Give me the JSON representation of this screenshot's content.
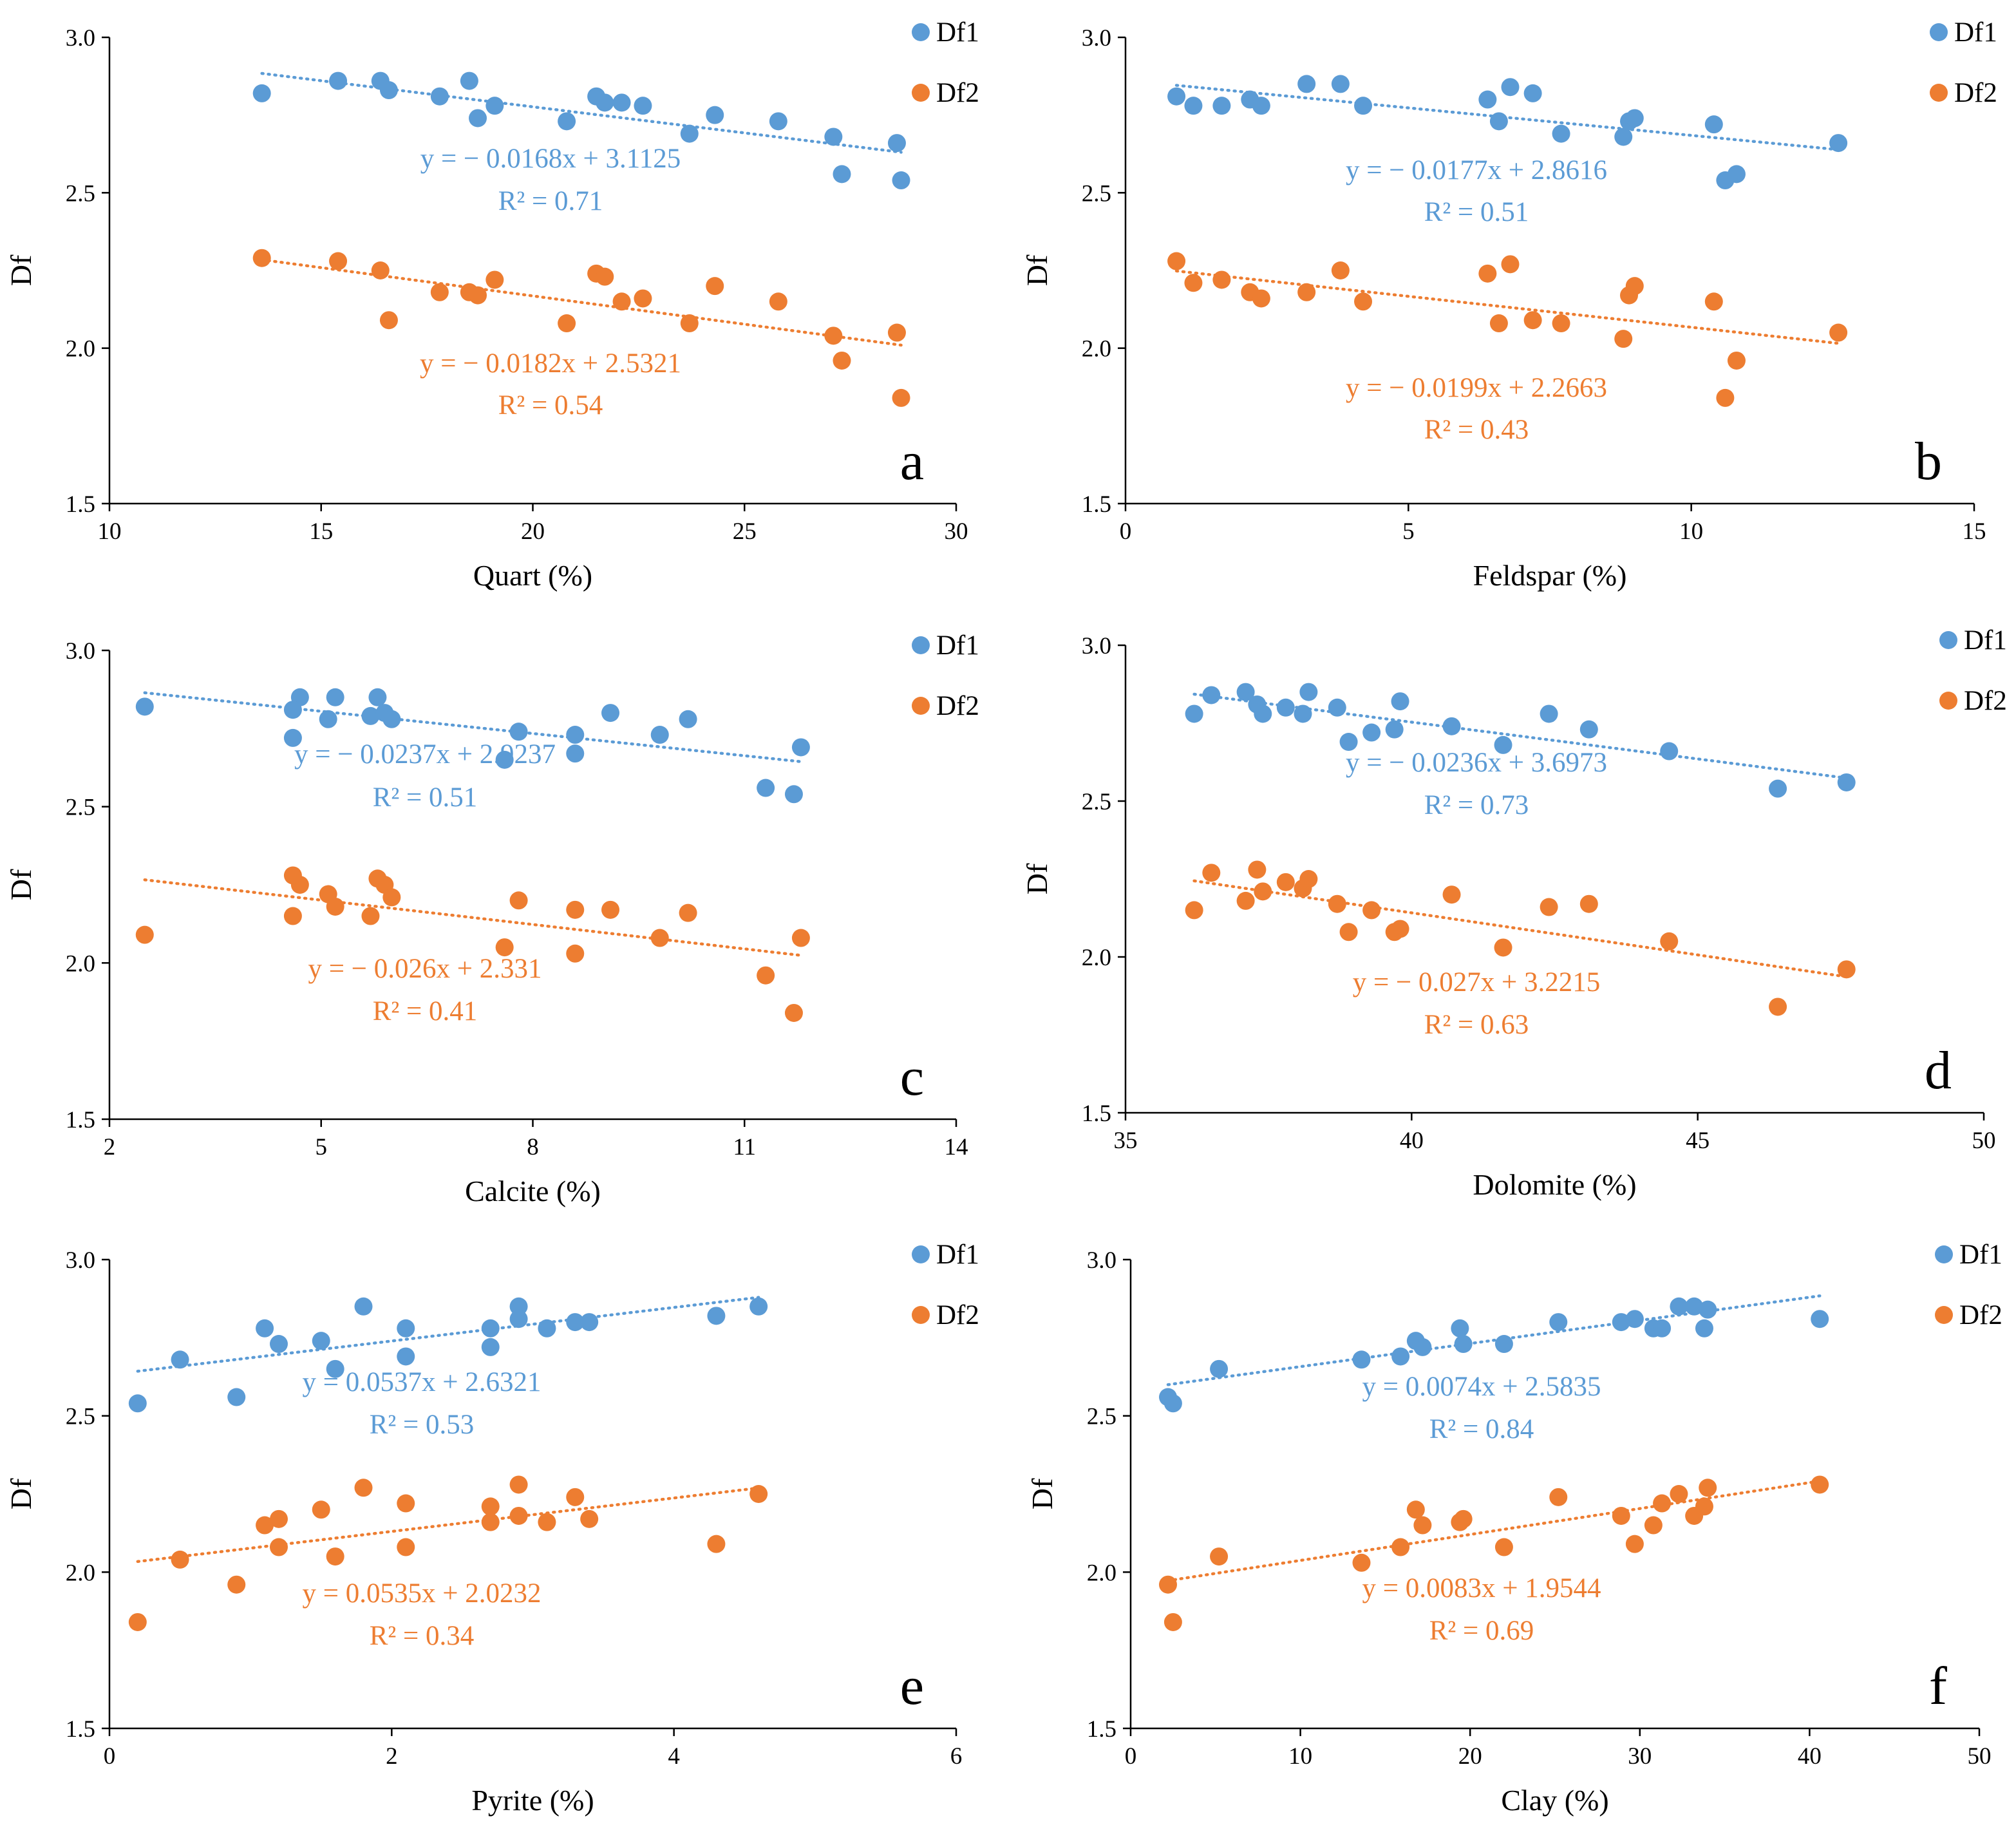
{
  "colors": {
    "df1": "#5b9bd5",
    "df2": "#ed7d31",
    "axis": "#000000",
    "text": "#000000"
  },
  "chart_data": [
    {
      "type": "scatter",
      "panel": "a",
      "xlabel": "Quart (%)",
      "ylabel": "Df",
      "xlim": [
        10,
        30
      ],
      "xticks": [
        "10",
        "15",
        "20",
        "25",
        "30"
      ],
      "ylim": [
        1.5,
        3.0
      ],
      "yticks": [
        "1.5",
        "2.0",
        "2.5",
        "3.0"
      ],
      "legend": [
        "Df1",
        "Df2"
      ],
      "series": [
        {
          "name": "Df1",
          "color": "#5b9bd5",
          "x": [
            13.6,
            15.4,
            16.4,
            16.6,
            17.8,
            18.5,
            18.7,
            19.1,
            20.8,
            21.5,
            21.7,
            22.1,
            22.6,
            23.7,
            24.3,
            25.8,
            27.1,
            27.3,
            28.6,
            28.7
          ],
          "y": [
            2.82,
            2.86,
            2.86,
            2.83,
            2.81,
            2.86,
            2.74,
            2.78,
            2.73,
            2.81,
            2.79,
            2.79,
            2.78,
            2.69,
            2.75,
            2.73,
            2.68,
            2.56,
            2.66,
            2.54
          ],
          "equation": "y = − 0.0168x + 3.1125",
          "r2": "R² = 0.71",
          "slope": -0.0168,
          "intercept": 3.1125,
          "trend_x": [
            13.6,
            28.7
          ]
        },
        {
          "name": "Df2",
          "color": "#ed7d31",
          "x": [
            13.6,
            15.4,
            16.4,
            16.6,
            17.8,
            18.5,
            18.7,
            19.1,
            20.8,
            21.5,
            21.7,
            22.1,
            22.6,
            23.7,
            24.3,
            25.8,
            27.1,
            27.3,
            28.6,
            28.7
          ],
          "y": [
            2.29,
            2.28,
            2.25,
            2.09,
            2.18,
            2.18,
            2.17,
            2.22,
            2.08,
            2.24,
            2.23,
            2.15,
            2.16,
            2.08,
            2.2,
            2.15,
            2.04,
            1.96,
            2.05,
            1.84
          ],
          "equation": "y = − 0.0182x + 2.5321",
          "r2": "R² = 0.54",
          "slope": -0.0182,
          "intercept": 2.5321,
          "trend_x": [
            13.6,
            28.7
          ]
        }
      ]
    },
    {
      "type": "scatter",
      "panel": "b",
      "xlabel": "Feldspar (%)",
      "ylabel": "Df",
      "xlim": [
        0,
        15
      ],
      "xticks": [
        "0",
        "5",
        "10",
        "15"
      ],
      "ylim": [
        1.5,
        3.0
      ],
      "yticks": [
        "1.5",
        "2.0",
        "2.5",
        "3.0"
      ],
      "legend": [
        "Df1",
        "Df2"
      ],
      "series": [
        {
          "name": "Df1",
          "color": "#5b9bd5",
          "x": [
            0.9,
            1.2,
            1.7,
            2.2,
            2.4,
            3.2,
            3.8,
            4.2,
            6.4,
            6.6,
            6.8,
            7.2,
            7.7,
            8.8,
            8.9,
            9.0,
            10.4,
            10.6,
            10.8,
            12.6
          ],
          "y": [
            2.81,
            2.78,
            2.78,
            2.8,
            2.78,
            2.85,
            2.85,
            2.78,
            2.8,
            2.73,
            2.84,
            2.82,
            2.69,
            2.68,
            2.73,
            2.74,
            2.72,
            2.54,
            2.56,
            2.66
          ],
          "equation": "y = − 0.0177x + 2.8616",
          "r2": "R² = 0.51",
          "slope": -0.0177,
          "intercept": 2.8616,
          "trend_x": [
            0.9,
            12.6
          ]
        },
        {
          "name": "Df2",
          "color": "#ed7d31",
          "x": [
            0.9,
            1.2,
            1.7,
            2.2,
            2.4,
            3.2,
            3.8,
            4.2,
            6.4,
            6.6,
            6.8,
            7.2,
            7.7,
            8.8,
            8.9,
            9.0,
            10.4,
            10.6,
            10.8,
            12.6
          ],
          "y": [
            2.28,
            2.21,
            2.22,
            2.18,
            2.16,
            2.18,
            2.25,
            2.15,
            2.24,
            2.08,
            2.27,
            2.09,
            2.08,
            2.03,
            2.17,
            2.2,
            2.15,
            1.84,
            1.96,
            2.05
          ],
          "equation": "y = − 0.0199x + 2.2663",
          "r2": "R² = 0.43",
          "slope": -0.0199,
          "intercept": 2.2663,
          "trend_x": [
            0.9,
            12.6
          ]
        }
      ]
    },
    {
      "type": "scatter",
      "panel": "c",
      "xlabel": "Calcite (%)",
      "ylabel": "Df",
      "xlim": [
        2,
        14
      ],
      "xticks": [
        "2",
        "5",
        "8",
        "11",
        "14"
      ],
      "ylim": [
        1.5,
        3.0
      ],
      "yticks": [
        "1.5",
        "2.0",
        "2.5",
        "3.0"
      ],
      "legend": [
        "Df1",
        "Df2"
      ],
      "series": [
        {
          "name": "Df1",
          "color": "#5b9bd5",
          "x": [
            2.5,
            4.6,
            4.7,
            4.6,
            5.1,
            5.2,
            5.8,
            5.7,
            5.9,
            6.0,
            7.6,
            7.8,
            8.6,
            8.6,
            9.1,
            9.8,
            10.2,
            11.3,
            11.7,
            11.8
          ],
          "y": [
            2.82,
            2.72,
            2.85,
            2.81,
            2.78,
            2.85,
            2.85,
            2.79,
            2.8,
            2.78,
            2.65,
            2.74,
            2.73,
            2.67,
            2.8,
            2.73,
            2.78,
            2.56,
            2.54,
            2.69
          ],
          "equation": "y = − 0.0237x + 2.9237",
          "r2": "R² = 0.51",
          "slope": -0.0237,
          "intercept": 2.9237,
          "trend_x": [
            2.5,
            11.8
          ]
        },
        {
          "name": "Df2",
          "color": "#ed7d31",
          "x": [
            2.5,
            4.6,
            4.7,
            4.6,
            5.1,
            5.2,
            5.8,
            5.7,
            5.9,
            6.0,
            7.6,
            7.8,
            8.6,
            8.6,
            9.1,
            9.8,
            10.2,
            11.3,
            11.7,
            11.8
          ],
          "y": [
            2.09,
            2.15,
            2.25,
            2.28,
            2.22,
            2.18,
            2.27,
            2.15,
            2.25,
            2.21,
            2.05,
            2.2,
            2.03,
            2.17,
            2.17,
            2.08,
            2.16,
            1.96,
            1.84,
            2.08
          ],
          "equation": "y = − 0.026x + 2.331",
          "r2": "R² = 0.41",
          "slope": -0.026,
          "intercept": 2.331,
          "trend_x": [
            2.5,
            11.8
          ]
        }
      ]
    },
    {
      "type": "scatter",
      "panel": "d",
      "xlabel": "Dolomite (%)",
      "ylabel": "Df",
      "xlim": [
        35,
        50
      ],
      "xticks": [
        "35",
        "40",
        "45",
        "50"
      ],
      "ylim": [
        1.5,
        3.0
      ],
      "yticks": [
        "1.5",
        "2.0",
        "2.5",
        "3.0"
      ],
      "legend": [
        "Df1",
        "Df2"
      ],
      "series": [
        {
          "name": "Df1",
          "color": "#5b9bd5",
          "x": [
            36.2,
            36.5,
            37.1,
            37.3,
            37.4,
            37.8,
            38.1,
            38.2,
            38.7,
            38.9,
            39.3,
            39.7,
            39.8,
            40.7,
            41.6,
            42.4,
            43.1,
            44.5,
            46.4,
            47.6
          ],
          "y": [
            2.78,
            2.84,
            2.85,
            2.81,
            2.78,
            2.8,
            2.78,
            2.85,
            2.8,
            2.69,
            2.72,
            2.73,
            2.82,
            2.74,
            2.68,
            2.78,
            2.73,
            2.66,
            2.54,
            2.56
          ],
          "equation": "y = − 0.0236x + 3.6973",
          "r2": "R² = 0.73",
          "slope": -0.0236,
          "intercept": 3.6973,
          "trend_x": [
            36.2,
            47.6
          ]
        },
        {
          "name": "Df2",
          "color": "#ed7d31",
          "x": [
            36.2,
            36.5,
            37.1,
            37.3,
            37.4,
            37.8,
            38.1,
            38.2,
            38.7,
            38.9,
            39.3,
            39.7,
            39.8,
            40.7,
            41.6,
            42.4,
            43.1,
            44.5,
            46.4,
            47.6
          ],
          "y": [
            2.15,
            2.27,
            2.18,
            2.28,
            2.21,
            2.24,
            2.22,
            2.25,
            2.17,
            2.08,
            2.15,
            2.08,
            2.09,
            2.2,
            2.03,
            2.16,
            2.17,
            2.05,
            1.84,
            1.96
          ],
          "equation": "y = − 0.027x + 3.2215",
          "r2": "R² = 0.63",
          "slope": -0.027,
          "intercept": 3.2215,
          "trend_x": [
            36.2,
            47.6
          ]
        }
      ]
    },
    {
      "type": "scatter",
      "panel": "e",
      "xlabel": "Pyrite (%)",
      "ylabel": "Df",
      "xlim": [
        0,
        6
      ],
      "xticks": [
        "0",
        "2",
        "4",
        "6"
      ],
      "ylim": [
        1.5,
        3.0
      ],
      "yticks": [
        "1.5",
        "2.0",
        "2.5",
        "3.0"
      ],
      "legend": [
        "Df1",
        "Df2"
      ],
      "series": [
        {
          "name": "Df1",
          "color": "#5b9bd5",
          "x": [
            0.2,
            0.5,
            0.9,
            1.1,
            1.2,
            1.5,
            1.6,
            1.8,
            2.1,
            2.1,
            2.7,
            2.7,
            2.9,
            2.9,
            3.1,
            3.3,
            3.4,
            4.3,
            4.6
          ],
          "y": [
            2.54,
            2.68,
            2.56,
            2.78,
            2.73,
            2.74,
            2.65,
            2.85,
            2.69,
            2.78,
            2.72,
            2.78,
            2.85,
            2.81,
            2.78,
            2.8,
            2.8,
            2.82,
            2.85
          ],
          "equation": "y = 0.0537x + 2.6321",
          "r2": "R² = 0.53",
          "slope": 0.0537,
          "intercept": 2.6321,
          "trend_x": [
            0.2,
            4.6
          ]
        },
        {
          "name": "Df2",
          "color": "#ed7d31",
          "x": [
            0.2,
            0.5,
            0.9,
            1.1,
            1.2,
            1.2,
            1.5,
            1.6,
            1.8,
            2.1,
            2.1,
            2.7,
            2.7,
            2.9,
            2.9,
            3.1,
            3.3,
            3.4,
            4.3,
            4.6
          ],
          "y": [
            1.84,
            2.04,
            1.96,
            2.15,
            2.08,
            2.17,
            2.2,
            2.05,
            2.27,
            2.22,
            2.08,
            2.21,
            2.16,
            2.28,
            2.18,
            2.16,
            2.24,
            2.17,
            2.09,
            2.25
          ],
          "equation": "y = 0.0535x + 2.0232",
          "r2": "R² = 0.34",
          "slope": 0.0535,
          "intercept": 2.0232,
          "trend_x": [
            0.2,
            4.6
          ]
        }
      ]
    },
    {
      "type": "scatter",
      "panel": "f",
      "xlabel": "Clay (%)",
      "ylabel": "Df",
      "xlim": [
        0,
        50
      ],
      "xticks": [
        "0",
        "10",
        "20",
        "30",
        "40",
        "50"
      ],
      "ylim": [
        1.5,
        3.0
      ],
      "yticks": [
        "1.5",
        "2.0",
        "2.5",
        "3.0"
      ],
      "legend": [
        "Df1",
        "Df2"
      ],
      "series": [
        {
          "name": "Df1",
          "color": "#5b9bd5",
          "x": [
            2.2,
            2.5,
            5.2,
            13.6,
            15.9,
            16.8,
            17.2,
            19.4,
            19.6,
            22.0,
            25.2,
            28.9,
            29.7,
            30.8,
            31.3,
            32.3,
            33.2,
            33.8,
            34.0,
            40.6
          ],
          "y": [
            2.56,
            2.54,
            2.65,
            2.68,
            2.69,
            2.74,
            2.72,
            2.78,
            2.73,
            2.73,
            2.8,
            2.8,
            2.81,
            2.78,
            2.78,
            2.85,
            2.85,
            2.78,
            2.84,
            2.81
          ],
          "equation": "y = 0.0074x + 2.5835",
          "r2": "R² = 0.84",
          "slope": 0.0074,
          "intercept": 2.5835,
          "trend_x": [
            2.2,
            40.6
          ]
        },
        {
          "name": "Df2",
          "color": "#ed7d31",
          "x": [
            2.2,
            2.5,
            5.2,
            13.6,
            15.9,
            16.8,
            17.2,
            19.4,
            19.6,
            22.0,
            25.2,
            28.9,
            29.7,
            30.8,
            31.3,
            32.3,
            33.2,
            33.8,
            34.0,
            40.6
          ],
          "y": [
            1.96,
            1.84,
            2.05,
            2.03,
            2.08,
            2.2,
            2.15,
            2.16,
            2.17,
            2.08,
            2.24,
            2.18,
            2.09,
            2.15,
            2.22,
            2.25,
            2.18,
            2.21,
            2.27,
            2.28
          ],
          "equation": "y = 0.0083x + 1.9544",
          "r2": "R² = 0.69",
          "slope": 0.0083,
          "intercept": 1.9544,
          "trend_x": [
            2.2,
            40.6
          ]
        }
      ]
    }
  ]
}
